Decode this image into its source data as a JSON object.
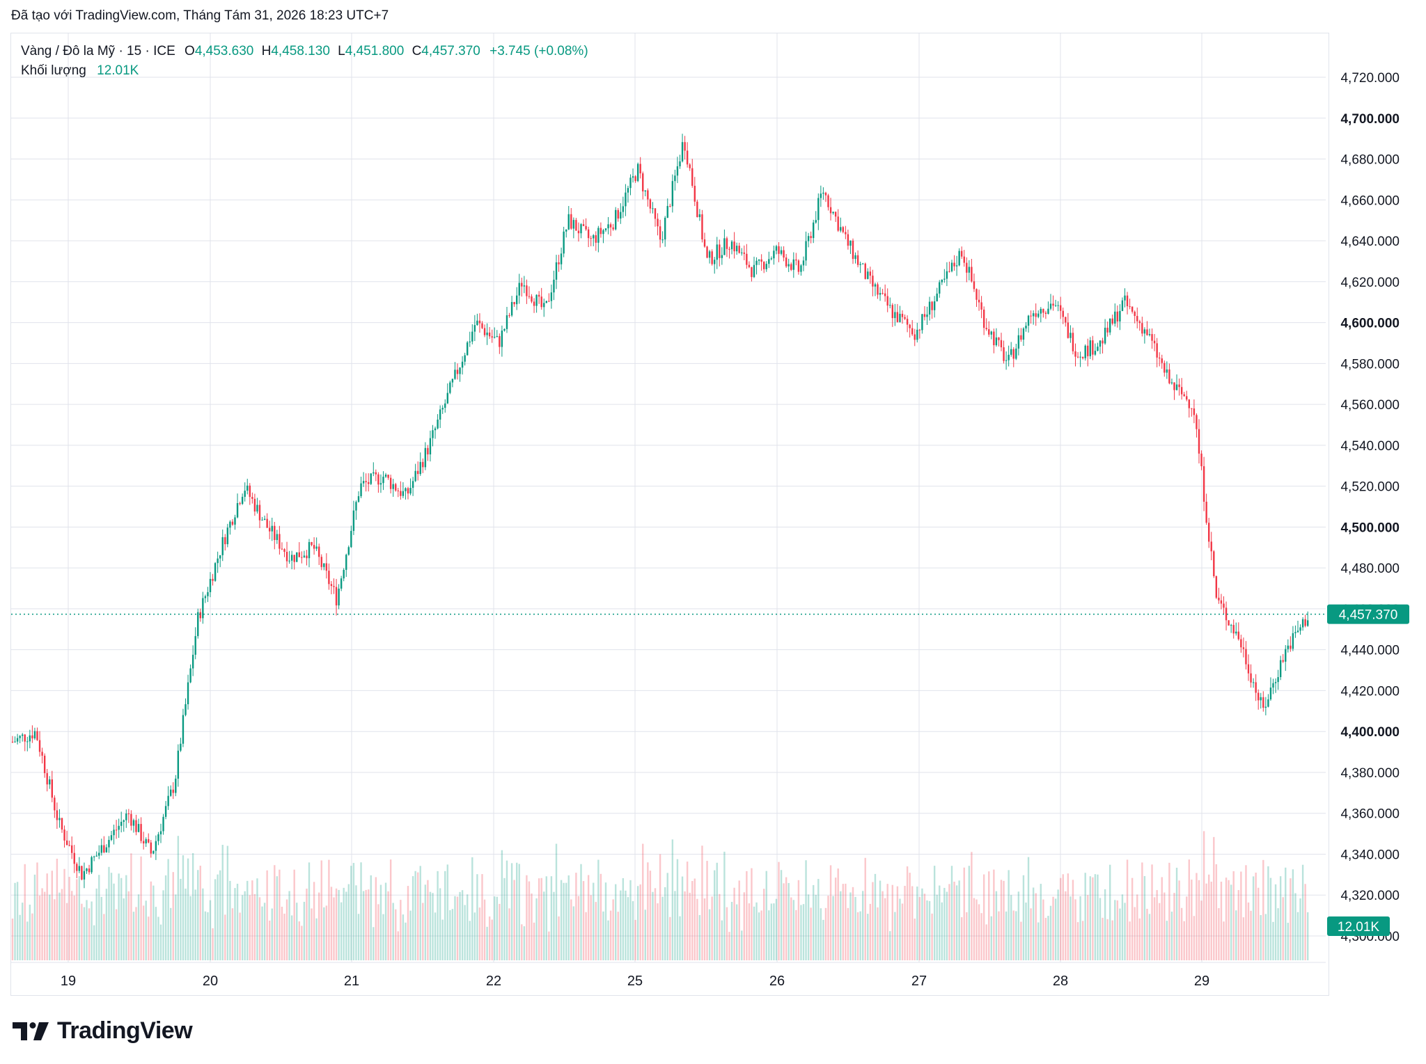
{
  "caption": "Đã tạo với TradingView.com, Tháng Tám 31, 2026 18:23 UTC+7",
  "legend": {
    "symbol": "Vàng / Đô la Mỹ · 15 · ICE",
    "o_label": "O",
    "o_value": "4,453.630",
    "h_label": "H",
    "h_value": "4,458.130",
    "l_label": "L",
    "l_value": "4,451.800",
    "c_label": "C",
    "c_value": "4,457.370",
    "change": "+3.745 (+0.08%)",
    "volume_label": "Khối lượng",
    "volume_value": "12.01K"
  },
  "brand": {
    "name": "TradingView",
    "logo_icon": "tradingview-logo-icon"
  },
  "colors": {
    "up": "#089981",
    "down": "#f23645",
    "grid": "#e0e3eb",
    "price_tag": "#089981"
  },
  "chart_data": {
    "type": "candlestick",
    "interval": "15",
    "y_ticks": [
      "4,720.000",
      "4,700.000",
      "4,680.000",
      "4,660.000",
      "4,640.000",
      "4,620.000",
      "4,600.000",
      "4,580.000",
      "4,560.000",
      "4,540.000",
      "4,520.000",
      "4,500.000",
      "4,480.000",
      "4,460.000",
      "4,440.000",
      "4,420.000",
      "4,400.000",
      "4,380.000",
      "4,360.000",
      "4,340.000",
      "4,320.000",
      "4,300.000"
    ],
    "y_ticks_bold": [
      "4,700.000",
      "4,600.000",
      "4,500.000",
      "4,400.000"
    ],
    "ylim": [
      4290,
      4730
    ],
    "x_ticks": [
      "19",
      "20",
      "21",
      "22",
      "25",
      "26",
      "27",
      "28",
      "29"
    ],
    "last_price": 4457.37,
    "last_price_label": "4,457.370",
    "last_volume_label": "12.01K",
    "price_path": [
      [
        "18",
        4395
      ],
      [
        "19",
        4400
      ],
      [
        "19",
        4355
      ],
      [
        "19",
        4330
      ],
      [
        "19",
        4345
      ],
      [
        "19",
        4360
      ],
      [
        "19",
        4340
      ],
      [
        "19",
        4375
      ],
      [
        "20",
        4455
      ],
      [
        "20",
        4490
      ],
      [
        "20",
        4520
      ],
      [
        "20",
        4500
      ],
      [
        "20",
        4485
      ],
      [
        "20",
        4490
      ],
      [
        "20",
        4465
      ],
      [
        "21",
        4520
      ],
      [
        "21",
        4525
      ],
      [
        "21",
        4515
      ],
      [
        "21",
        4540
      ],
      [
        "21",
        4570
      ],
      [
        "21",
        4600
      ],
      [
        "21",
        4590
      ],
      [
        "22",
        4620
      ],
      [
        "22",
        4605
      ],
      [
        "22",
        4650
      ],
      [
        "22",
        4640
      ],
      [
        "22",
        4650
      ],
      [
        "25",
        4675
      ],
      [
        "25",
        4640
      ],
      [
        "25",
        4690
      ],
      [
        "25",
        4630
      ],
      [
        "25",
        4640
      ],
      [
        "25",
        4625
      ],
      [
        "25",
        4635
      ],
      [
        "26",
        4625
      ],
      [
        "26",
        4665
      ],
      [
        "26",
        4640
      ],
      [
        "26",
        4620
      ],
      [
        "26",
        4605
      ],
      [
        "27",
        4595
      ],
      [
        "27",
        4615
      ],
      [
        "27",
        4635
      ],
      [
        "27",
        4600
      ],
      [
        "27",
        4580
      ],
      [
        "28",
        4605
      ],
      [
        "28",
        4610
      ],
      [
        "28",
        4585
      ],
      [
        "28",
        4590
      ],
      [
        "28",
        4610
      ],
      [
        "28",
        4595
      ],
      [
        "28",
        4570
      ],
      [
        "29",
        4560
      ],
      [
        "29",
        4465
      ],
      [
        "29",
        4445
      ],
      [
        "29",
        4410
      ],
      [
        "29",
        4440
      ],
      [
        "29",
        4457.37
      ]
    ]
  }
}
